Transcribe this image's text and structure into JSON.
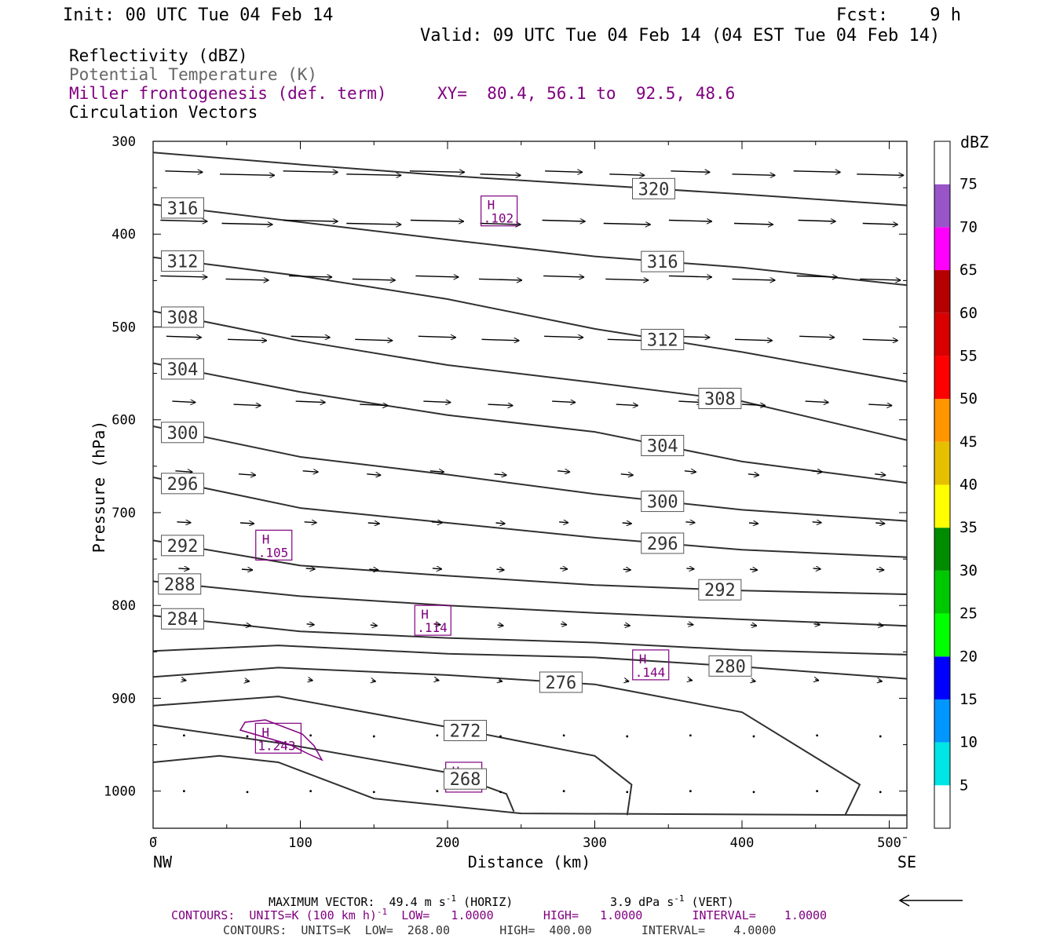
{
  "header": {
    "init": "Init: 00 UTC Tue 04 Feb 14",
    "fcst": "Fcst:    9 h",
    "valid": "Valid: 09 UTC Tue 04 Feb 14 (04 EST Tue 04 Feb 14)"
  },
  "fields": {
    "reflectivity": "Reflectivity (dBZ)",
    "theta": "Potential Temperature (K)",
    "miller": "Miller frontogenesis (def. term)",
    "xy": "XY=  80.4, 56.1 to  92.5, 48.6",
    "circulation": "Circulation Vectors"
  },
  "axes": {
    "ylabel": "Pressure (hPa)",
    "xlabel": "Distance (km)",
    "x_left_label": "NW",
    "x_right_label": "SE",
    "y_ticks": [
      "300",
      "400",
      "500",
      "600",
      "700",
      "800",
      "900",
      "1000"
    ],
    "x_ticks": [
      "0",
      "100",
      "200",
      "300",
      "400",
      "500"
    ]
  },
  "colorbar": {
    "title": "dBZ",
    "levels": [
      "5",
      "10",
      "15",
      "20",
      "25",
      "30",
      "35",
      "40",
      "45",
      "50",
      "55",
      "60",
      "65",
      "70",
      "75"
    ],
    "colors": [
      "#ffffff",
      "#00e5e5",
      "#0096ff",
      "#0000ff",
      "#00ff00",
      "#00c800",
      "#008c00",
      "#ffff00",
      "#e6c000",
      "#ff9600",
      "#ff0000",
      "#d80000",
      "#b40000",
      "#ff00ff",
      "#9955c8",
      "#ffffff"
    ]
  },
  "footer": {
    "max_vector": "MAXIMUM VECTOR:  49.4 m s",
    "max_vector_sup": "-1",
    "max_vector_horiz": " (HORIZ)",
    "vert": "3.9 dPa s",
    "vert_sup": "-1",
    "vert_tail": " (VERT)",
    "contours1": "CONTOURS:  UNITS=K (100 km h)",
    "contours1_sup": "-1",
    "contours1_tail": "  LOW=   1.0000       HIGH=   1.0000       INTERVAL=    1.0000",
    "contours2": "CONTOURS:  UNITS=K  LOW=  268.00       HIGH=  400.00       INTERVAL=    4.0000"
  },
  "colors": {
    "contour": "#303030",
    "purple": "#800080",
    "text": "#000000",
    "gray_text": "#555555"
  },
  "chart_data": {
    "type": "cross-section",
    "x_range_km": [
      0,
      512
    ],
    "p_range_hPa": [
      300,
      1040
    ],
    "theta_contours": [
      {
        "value": 320,
        "label": "320",
        "points": [
          [
            0,
            312
          ],
          [
            100,
            325
          ],
          [
            200,
            337
          ],
          [
            300,
            347
          ],
          [
            400,
            357
          ],
          [
            512,
            369
          ]
        ]
      },
      {
        "value": 316,
        "label": "316",
        "points": [
          [
            0,
            368
          ],
          [
            100,
            387
          ],
          [
            200,
            406
          ],
          [
            300,
            424
          ],
          [
            400,
            436
          ],
          [
            512,
            455
          ]
        ]
      },
      {
        "value": 312,
        "label": "312",
        "points": [
          [
            0,
            425
          ],
          [
            100,
            445
          ],
          [
            200,
            470
          ],
          [
            300,
            502
          ],
          [
            400,
            527
          ],
          [
            512,
            559
          ]
        ]
      },
      {
        "value": 308,
        "label": "308",
        "points": [
          [
            0,
            483
          ],
          [
            100,
            515
          ],
          [
            200,
            541
          ],
          [
            300,
            560
          ],
          [
            400,
            580
          ],
          [
            512,
            622
          ]
        ]
      },
      {
        "value": 304,
        "label": "304",
        "points": [
          [
            0,
            539
          ],
          [
            100,
            570
          ],
          [
            200,
            595
          ],
          [
            300,
            613
          ],
          [
            400,
            645
          ],
          [
            512,
            668
          ]
        ]
      },
      {
        "value": 300,
        "label": "300",
        "points": [
          [
            0,
            607
          ],
          [
            100,
            640
          ],
          [
            200,
            659
          ],
          [
            300,
            680
          ],
          [
            400,
            697
          ],
          [
            512,
            709
          ]
        ]
      },
      {
        "value": 296,
        "label": "296",
        "points": [
          [
            0,
            662
          ],
          [
            100,
            695
          ],
          [
            200,
            711
          ],
          [
            300,
            727
          ],
          [
            400,
            740
          ],
          [
            512,
            748
          ]
        ]
      },
      {
        "value": 292,
        "label": "292",
        "points": [
          [
            0,
            730
          ],
          [
            100,
            757
          ],
          [
            200,
            768
          ],
          [
            300,
            778
          ],
          [
            400,
            784
          ],
          [
            512,
            788
          ]
        ]
      },
      {
        "value": 288,
        "label": "288",
        "points": [
          [
            0,
            774
          ],
          [
            100,
            790
          ],
          [
            200,
            800
          ],
          [
            300,
            808
          ],
          [
            400,
            815
          ],
          [
            512,
            822
          ]
        ]
      },
      {
        "value": 284,
        "label": "284",
        "points": [
          [
            0,
            811
          ],
          [
            100,
            828
          ],
          [
            200,
            835
          ],
          [
            300,
            840
          ],
          [
            400,
            848
          ],
          [
            512,
            853
          ]
        ]
      },
      {
        "value": 280,
        "label": "280",
        "points": [
          [
            0,
            849
          ],
          [
            85,
            843
          ],
          [
            200,
            852
          ],
          [
            300,
            856
          ],
          [
            400,
            866
          ],
          [
            512,
            879
          ]
        ]
      },
      {
        "value": 276,
        "label": "276",
        "points": [
          [
            0,
            877
          ],
          [
            85,
            867
          ],
          [
            200,
            875
          ],
          [
            300,
            885
          ],
          [
            400,
            915
          ],
          [
            480,
            993
          ],
          [
            470,
            1026
          ]
        ]
      },
      {
        "value": 272,
        "label": "272",
        "points": [
          [
            0,
            908
          ],
          [
            85,
            898
          ],
          [
            200,
            931
          ],
          [
            300,
            962
          ],
          [
            325,
            993
          ],
          [
            322,
            1026
          ]
        ]
      },
      {
        "value": 268,
        "label": "268",
        "points": [
          [
            0,
            929
          ],
          [
            85,
            948
          ],
          [
            200,
            980
          ],
          [
            240,
            1003
          ],
          [
            245,
            1022
          ]
        ]
      },
      {
        "value": null,
        "label": "",
        "points": [
          [
            0,
            969
          ],
          [
            45,
            962
          ],
          [
            85,
            969
          ],
          [
            150,
            1008
          ],
          [
            250,
            1024
          ],
          [
            512,
            1026
          ]
        ]
      }
    ],
    "frontogenesis_maxima": [
      {
        "label": "H",
        "value": ".102",
        "x_km": 235,
        "p_hPa": 375
      },
      {
        "label": "H",
        "value": ".105",
        "x_km": 82,
        "p_hPa": 735
      },
      {
        "label": "H",
        "value": ".114",
        "x_km": 190,
        "p_hPa": 816
      },
      {
        "label": "H",
        "value": ".144",
        "x_km": 338,
        "p_hPa": 864
      },
      {
        "label": "H",
        "value": "1.243",
        "x_km": 85,
        "p_hPa": 943
      },
      {
        "label": "H",
        "value": "",
        "x_km": 211,
        "p_hPa": 985
      }
    ],
    "circulation_vectors": {
      "x_positions_km": [
        21,
        64,
        107,
        150,
        193,
        236,
        279,
        322,
        365,
        408,
        451,
        494
      ],
      "rows": [
        {
          "p_hPa": 332,
          "lengths": [
            48,
            70,
            70,
            70,
            70,
            52,
            48,
            45,
            50,
            55,
            60,
            60
          ]
        },
        {
          "p_hPa": 385,
          "lengths": [
            60,
            65,
            70,
            70,
            68,
            52,
            55,
            60,
            55,
            50,
            48,
            45
          ]
        },
        {
          "p_hPa": 445,
          "lengths": [
            60,
            55,
            55,
            55,
            55,
            55,
            52,
            55,
            55,
            55,
            52,
            52
          ]
        },
        {
          "p_hPa": 510,
          "lengths": [
            45,
            50,
            50,
            48,
            48,
            48,
            50,
            50,
            50,
            48,
            45,
            45
          ]
        },
        {
          "p_hPa": 580,
          "lengths": [
            30,
            35,
            38,
            36,
            35,
            32,
            30,
            28,
            30,
            30,
            30,
            30
          ]
        },
        {
          "p_hPa": 655,
          "lengths": [
            22,
            22,
            20,
            18,
            18,
            16,
            16,
            16,
            15,
            14,
            14,
            14
          ]
        },
        {
          "p_hPa": 710,
          "lengths": [
            18,
            18,
            16,
            15,
            14,
            12,
            12,
            12,
            12,
            12,
            12,
            12
          ]
        },
        {
          "p_hPa": 760,
          "lengths": [
            14,
            14,
            12,
            12,
            12,
            10,
            10,
            10,
            10,
            10,
            10,
            10
          ]
        },
        {
          "p_hPa": 820,
          "lengths": [
            10,
            10,
            10,
            9,
            9,
            8,
            8,
            8,
            8,
            8,
            8,
            8
          ]
        },
        {
          "p_hPa": 880,
          "lengths": [
            6,
            6,
            6,
            5,
            5,
            5,
            5,
            5,
            5,
            5,
            5,
            5
          ]
        },
        {
          "p_hPa": 940,
          "lengths": [
            3,
            3,
            3,
            3,
            3,
            3,
            3,
            3,
            3,
            3,
            3,
            3
          ]
        },
        {
          "p_hPa": 1000,
          "lengths": [
            3,
            3,
            3,
            3,
            3,
            3,
            3,
            3,
            3,
            3,
            3,
            3
          ]
        }
      ]
    }
  }
}
